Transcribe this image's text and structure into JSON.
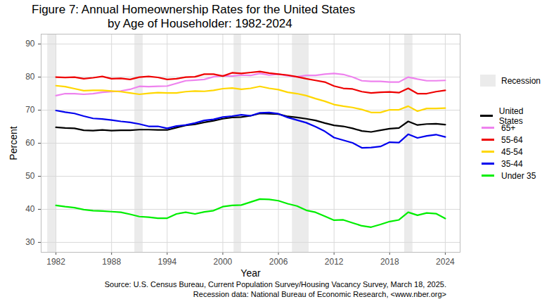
{
  "chart_data": {
    "type": "line",
    "title": "Figure 7: Annual Homeownership Rates for the United States\nby Age of Householder: 1982-2024",
    "x_label": "Year",
    "y_label": "Percent",
    "caption": [
      "Source: U.S. Census Bureau, Current Population Survey/Housing Vacancy Survey, March 18, 2025.",
      "Recession data: National Bureau of Economic Research, <www.nber.org>"
    ],
    "xlim": [
      1980.4,
      2025.6
    ],
    "xticks": [
      1982,
      1988,
      1994,
      2000,
      2006,
      2012,
      2018,
      2024
    ],
    "ylim": [
      27,
      93
    ],
    "yticks": [
      30,
      40,
      50,
      60,
      70,
      80,
      90
    ],
    "grid": true,
    "legend": "right",
    "recessions": {
      "name": "Recession",
      "periods": [
        [
          1981.1,
          1982.0
        ],
        [
          1990.5,
          1991.4
        ],
        [
          2001.2,
          2002.0
        ],
        [
          2007.5,
          2009.3
        ],
        [
          2019.6,
          2020.5
        ]
      ]
    },
    "x": [
      1982,
      1983,
      1984,
      1985,
      1986,
      1987,
      1988,
      1989,
      1990,
      1991,
      1992,
      1993,
      1994,
      1995,
      1996,
      1997,
      1998,
      1999,
      2000,
      2001,
      2002,
      2003,
      2004,
      2005,
      2006,
      2007,
      2008,
      2009,
      2010,
      2011,
      2012,
      2013,
      2014,
      2015,
      2016,
      2017,
      2018,
      2019,
      2020,
      2021,
      2022,
      2023,
      2024
    ],
    "series": [
      {
        "name": "United States",
        "color": "#000000",
        "values": [
          64.8,
          64.6,
          64.5,
          63.9,
          63.8,
          64.0,
          63.8,
          63.9,
          63.9,
          64.1,
          64.1,
          64.0,
          64.0,
          64.7,
          65.4,
          65.7,
          66.3,
          66.8,
          67.4,
          67.8,
          67.9,
          68.3,
          69.0,
          68.9,
          68.8,
          68.1,
          67.8,
          67.4,
          66.9,
          66.1,
          65.4,
          65.1,
          64.5,
          63.7,
          63.4,
          63.9,
          64.4,
          64.6,
          66.6,
          65.5,
          65.8,
          65.9,
          65.6
        ]
      },
      {
        "name": "65+",
        "color": "#ee82ee",
        "values": [
          74.4,
          75.0,
          75.0,
          74.8,
          75.0,
          75.4,
          75.6,
          75.8,
          76.3,
          77.2,
          77.1,
          77.2,
          77.3,
          78.1,
          78.9,
          79.1,
          79.3,
          80.1,
          80.4,
          80.3,
          80.6,
          80.5,
          81.1,
          80.6,
          80.9,
          80.4,
          80.1,
          80.5,
          80.5,
          80.9,
          81.1,
          80.8,
          80.0,
          78.9,
          78.7,
          78.7,
          78.5,
          78.5,
          80.0,
          79.4,
          78.9,
          78.9,
          79.0
        ]
      },
      {
        "name": "55-64",
        "color": "#ee0000",
        "values": [
          80.0,
          79.9,
          80.0,
          79.5,
          79.8,
          80.2,
          79.5,
          79.6,
          79.3,
          80.0,
          80.2,
          79.9,
          79.3,
          79.5,
          80.0,
          80.1,
          80.9,
          80.9,
          80.3,
          81.3,
          81.1,
          81.4,
          81.7,
          81.2,
          80.9,
          80.6,
          80.1,
          79.5,
          79.0,
          78.5,
          77.3,
          76.6,
          76.4,
          75.6,
          75.2,
          75.4,
          75.5,
          75.3,
          76.6,
          75.0,
          75.0,
          75.6,
          76.0
        ]
      },
      {
        "name": "45-54",
        "color": "#ffd700",
        "values": [
          77.4,
          77.1,
          76.5,
          75.9,
          76.0,
          76.0,
          75.8,
          75.6,
          75.2,
          74.8,
          75.1,
          75.3,
          75.2,
          75.2,
          75.6,
          75.8,
          75.7,
          76.0,
          76.5,
          76.7,
          76.3,
          76.6,
          77.2,
          76.6,
          76.2,
          75.4,
          75.0,
          74.4,
          73.5,
          72.7,
          71.7,
          71.2,
          70.8,
          70.2,
          69.3,
          69.3,
          70.1,
          70.1,
          71.2,
          69.7,
          70.5,
          70.5,
          70.6
        ]
      },
      {
        "name": "35-44",
        "color": "#0000ee",
        "values": [
          69.9,
          69.4,
          69.0,
          68.2,
          67.5,
          67.3,
          67.0,
          66.6,
          66.3,
          65.8,
          65.1,
          65.1,
          64.5,
          65.2,
          65.5,
          66.1,
          66.9,
          67.2,
          67.9,
          68.2,
          68.6,
          68.3,
          69.2,
          69.3,
          68.9,
          67.8,
          67.0,
          66.2,
          65.0,
          63.6,
          61.7,
          60.9,
          60.1,
          58.6,
          58.7,
          59.0,
          60.3,
          60.2,
          62.7,
          61.6,
          62.2,
          62.6,
          61.9
        ]
      },
      {
        "name": "Under 35",
        "color": "#00ee00",
        "values": [
          41.2,
          40.8,
          40.5,
          39.9,
          39.6,
          39.5,
          39.3,
          39.1,
          38.5,
          37.8,
          37.6,
          37.3,
          37.3,
          38.6,
          39.1,
          38.6,
          39.2,
          39.6,
          40.8,
          41.2,
          41.3,
          42.2,
          43.1,
          43.0,
          42.6,
          41.7,
          41.0,
          39.7,
          39.1,
          37.9,
          36.7,
          36.8,
          35.9,
          35.0,
          34.6,
          35.4,
          36.3,
          36.8,
          39.1,
          38.2,
          38.9,
          38.7,
          37.2
        ]
      }
    ]
  }
}
